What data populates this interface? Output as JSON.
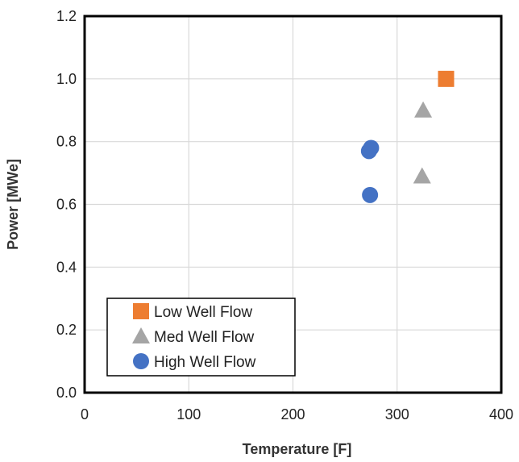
{
  "chart_data": {
    "type": "scatter",
    "title": "",
    "xlabel": "Temperature [F]",
    "ylabel": "Power [MWe]",
    "xlim": [
      0,
      400
    ],
    "ylim": [
      0,
      1.2
    ],
    "xticks": [
      "0",
      "100",
      "200",
      "300",
      "400"
    ],
    "yticks": [
      "0.0",
      "0.2",
      "0.4",
      "0.6",
      "0.8",
      "1.0",
      "1.2"
    ],
    "grid": true,
    "legend_position": "bottom-left",
    "series": [
      {
        "name": "Low Well Flow",
        "marker": "square",
        "color": "#ED7D31",
        "points": [
          {
            "x": 347,
            "y": 1.0
          }
        ]
      },
      {
        "name": "Med Well Flow",
        "marker": "triangle",
        "color": "#A5A5A5",
        "points": [
          {
            "x": 325,
            "y": 0.9
          },
          {
            "x": 324,
            "y": 0.69
          }
        ]
      },
      {
        "name": "High Well Flow",
        "marker": "circle",
        "color": "#4472C4",
        "points": [
          {
            "x": 275,
            "y": 0.78
          },
          {
            "x": 273,
            "y": 0.77
          },
          {
            "x": 274,
            "y": 0.63
          }
        ]
      }
    ]
  }
}
